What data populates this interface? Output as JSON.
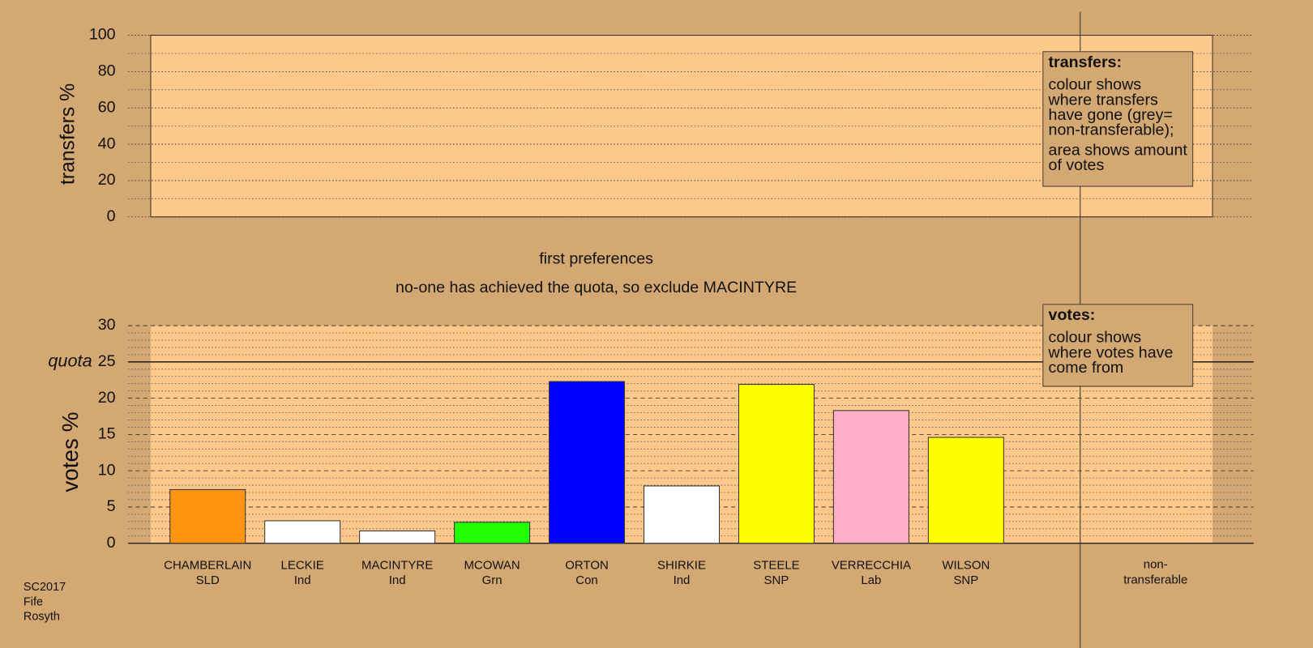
{
  "chart_data": [
    {
      "type": "bar",
      "ylabel": "transfers %",
      "ylim": [
        0,
        100
      ],
      "yticks": [
        0,
        20,
        40,
        60,
        80,
        100
      ],
      "minor_yticks": [
        10,
        30,
        50,
        70,
        90
      ],
      "grid": true,
      "legend": {
        "title": "transfers:",
        "lines": [
          "colour shows where transfers have gone (grey= non-transferable);",
          "area shows amount of votes"
        ]
      }
    },
    {
      "type": "bar",
      "title": "first preferences",
      "subtitle": "no-one has achieved the quota, so exclude MACINTYRE",
      "ylabel": "votes %",
      "ylim": [
        0,
        30
      ],
      "yticks": [
        0,
        5,
        10,
        15,
        20,
        25,
        30
      ],
      "minor_yticks": [
        1,
        2,
        3,
        4,
        6,
        7,
        8,
        9,
        11,
        12,
        13,
        14,
        16,
        17,
        18,
        19,
        21,
        22,
        23,
        24,
        26,
        27,
        28,
        29
      ],
      "grid": true,
      "categories": [
        "CHAMBERLAIN",
        "LECKIE",
        "MACINTYRE",
        "MCOWAN",
        "ORTON",
        "SHIRKIE",
        "STEELE",
        "VERRECCHIA",
        "WILSON"
      ],
      "parties": [
        "SLD",
        "Ind",
        "Ind",
        "Grn",
        "Con",
        "Ind",
        "SNP",
        "Lab",
        "SNP"
      ],
      "values": [
        7.4,
        3.1,
        1.7,
        2.9,
        22.3,
        7.9,
        21.9,
        18.3,
        14.6
      ],
      "colors": [
        "#ff9410",
        "#ffffff",
        "#ffffff",
        "#22ff00",
        "#0000ff",
        "#ffffff",
        "#ffff00",
        "#ffb0c8",
        "#ffff00"
      ],
      "quota": {
        "label": "quota",
        "value": 25
      },
      "extra_category": "non-transferable",
      "legend": {
        "title": "votes:",
        "lines": [
          "colour shows where votes have come from"
        ]
      }
    }
  ],
  "footer": [
    "SC2017",
    "Fife",
    "Rosyth"
  ]
}
